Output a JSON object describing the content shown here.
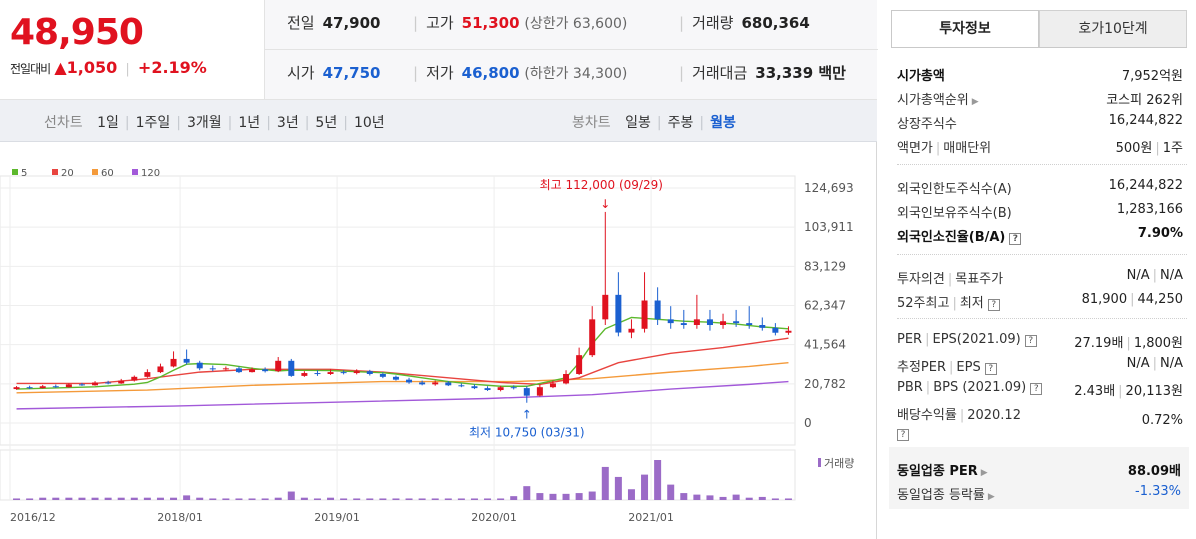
{
  "price": {
    "current": "48,950",
    "change_label": "전일대비",
    "change_amount": "1,050",
    "change_pct": "+2.19%"
  },
  "quote": {
    "prev_close": {
      "label": "전일",
      "value": "47,900"
    },
    "high": {
      "label": "고가",
      "value": "51,300",
      "limit_label": "상한가",
      "limit_value": "63,600"
    },
    "volume": {
      "label": "거래량",
      "value": "680,364"
    },
    "open": {
      "label": "시가",
      "value": "47,750"
    },
    "low": {
      "label": "저가",
      "value": "46,800",
      "limit_label": "하한가",
      "limit_value": "34,300"
    },
    "amount": {
      "label": "거래대금",
      "value": "33,339 백만"
    }
  },
  "period_bar": {
    "line_title": "선차트",
    "line_options": [
      "1일",
      "1주일",
      "3개월",
      "1년",
      "3년",
      "5년",
      "10년"
    ],
    "candle_title": "봉차트",
    "candle_options": [
      "일봉",
      "주봉",
      "월봉"
    ],
    "candle_selected": 2
  },
  "colors": {
    "ma5": "#5cb82c",
    "ma20": "#e8443f",
    "ma60": "#f49a3a",
    "ma120": "#a259d9",
    "up": "#e0121f",
    "down": "#1b60d0",
    "volume": "#9b6bc7"
  },
  "chart_data": {
    "type": "candlestick",
    "legend": [
      {
        "name": "5",
        "color": "#5cb82c"
      },
      {
        "name": "20",
        "color": "#e8443f"
      },
      {
        "name": "60",
        "color": "#f49a3a"
      },
      {
        "name": "120",
        "color": "#a259d9"
      }
    ],
    "y_ticks": [
      "124,693",
      "103,911",
      "83,129",
      "62,347",
      "41,564",
      "20,782",
      "0"
    ],
    "ylim": [
      0,
      124693
    ],
    "x_ticks": [
      "2016/12",
      "2018/01",
      "2019/01",
      "2020/01",
      "2021/01"
    ],
    "x_tick_months": [
      0,
      13,
      25,
      37,
      49
    ],
    "months": 60,
    "high_annotation": {
      "text": "최고 112,000 (09/29)",
      "month": 45,
      "value": 112000
    },
    "low_annotation": {
      "text": "최저 10,750 (03/31)",
      "month": 39,
      "value": 10750
    },
    "volume_label": "거래량",
    "candles": [
      [
        0,
        18000,
        19000,
        19600,
        17600
      ],
      [
        1,
        19000,
        18500,
        19800,
        18000
      ],
      [
        2,
        18500,
        19500,
        20200,
        18300
      ],
      [
        3,
        19500,
        19000,
        20400,
        18600
      ],
      [
        4,
        19000,
        20500,
        21000,
        18800
      ],
      [
        5,
        20500,
        20000,
        21300,
        19700
      ],
      [
        6,
        20000,
        21500,
        22200,
        19800
      ],
      [
        7,
        21500,
        21000,
        22400,
        20500
      ],
      [
        8,
        21000,
        22500,
        23400,
        20800
      ],
      [
        9,
        22500,
        24500,
        25200,
        22000
      ],
      [
        10,
        24500,
        27000,
        28500,
        24000
      ],
      [
        11,
        27000,
        30000,
        31500,
        26500
      ],
      [
        12,
        30000,
        34000,
        38000,
        29500
      ],
      [
        13,
        34000,
        32000,
        39000,
        31000
      ],
      [
        14,
        32000,
        29000,
        33000,
        28000
      ],
      [
        15,
        29000,
        28500,
        30500,
        27500
      ],
      [
        16,
        28500,
        29000,
        30000,
        27800
      ],
      [
        17,
        29000,
        27000,
        30000,
        26500
      ],
      [
        18,
        27000,
        28500,
        29500,
        26800
      ],
      [
        19,
        28500,
        27500,
        29500,
        26800
      ],
      [
        20,
        27500,
        33000,
        35000,
        27000
      ],
      [
        21,
        33000,
        25000,
        34000,
        24500
      ],
      [
        22,
        25000,
        26500,
        27500,
        24500
      ],
      [
        23,
        26500,
        26000,
        28000,
        25000
      ],
      [
        24,
        26000,
        27000,
        28500,
        25500
      ],
      [
        25,
        27000,
        26500,
        28000,
        25800
      ],
      [
        26,
        26500,
        27500,
        28500,
        25800
      ],
      [
        27,
        27500,
        26000,
        28200,
        25200
      ],
      [
        28,
        26000,
        24500,
        26800,
        23800
      ],
      [
        29,
        24500,
        23000,
        25200,
        22500
      ],
      [
        30,
        23000,
        21500,
        24000,
        20800
      ],
      [
        31,
        21500,
        20500,
        22500,
        20000
      ],
      [
        32,
        20500,
        21500,
        22500,
        19800
      ],
      [
        33,
        21500,
        20000,
        22200,
        19600
      ],
      [
        34,
        20000,
        19500,
        21000,
        19000
      ],
      [
        35,
        19500,
        18500,
        20500,
        18000
      ],
      [
        36,
        18500,
        17500,
        19500,
        17000
      ],
      [
        37,
        17500,
        19000,
        19800,
        16800
      ],
      [
        38,
        19000,
        18500,
        20000,
        17800
      ],
      [
        39,
        18500,
        14500,
        19500,
        10750
      ],
      [
        40,
        14500,
        19000,
        20500,
        14000
      ],
      [
        41,
        19000,
        21000,
        22500,
        18500
      ],
      [
        42,
        21000,
        26000,
        28000,
        20500
      ],
      [
        43,
        26000,
        36000,
        40000,
        25500
      ],
      [
        44,
        36000,
        55000,
        62000,
        35000
      ],
      [
        45,
        55000,
        68000,
        112000,
        52000
      ],
      [
        46,
        68000,
        48000,
        80000,
        46000
      ],
      [
        47,
        48000,
        50000,
        55000,
        45000
      ],
      [
        48,
        50000,
        65000,
        80000,
        48000
      ],
      [
        49,
        65000,
        55000,
        72000,
        52000
      ],
      [
        50,
        55000,
        53000,
        62000,
        50000
      ],
      [
        51,
        53000,
        52000,
        60000,
        50000
      ],
      [
        52,
        52000,
        55000,
        68000,
        50000
      ],
      [
        53,
        55000,
        52000,
        60000,
        49000
      ],
      [
        54,
        52000,
        54000,
        58000,
        50000
      ],
      [
        55,
        54000,
        53000,
        60000,
        51000
      ],
      [
        56,
        53000,
        52000,
        62000,
        50000
      ],
      [
        57,
        52000,
        50500,
        56000,
        49000
      ],
      [
        58,
        50500,
        47900,
        53000,
        46500
      ],
      [
        59,
        47900,
        48950,
        51300,
        46800
      ]
    ],
    "ma": {
      "ma5": [
        18000,
        18600,
        19200,
        20600,
        21500,
        24500,
        28000,
        31200,
        31500,
        31000,
        29000,
        27600,
        28000,
        27800,
        27200,
        26700,
        26000,
        24000,
        22000,
        20500,
        19500,
        19500,
        24000,
        32000,
        42000,
        50000,
        56000,
        55000,
        54000,
        53500,
        52500,
        51000,
        50000
      ],
      "ma5_x": [
        0,
        3,
        6,
        9,
        10,
        11,
        12,
        13,
        14,
        16,
        18,
        20,
        21,
        24,
        26,
        28,
        29,
        31,
        33,
        35,
        37,
        39,
        42,
        43,
        44,
        45,
        47,
        49,
        51,
        53,
        55,
        57,
        59
      ],
      "ma20": [
        [
          0,
          21000
        ],
        [
          6,
          21000
        ],
        [
          10,
          23500
        ],
        [
          14,
          27000
        ],
        [
          18,
          28500
        ],
        [
          24,
          28500
        ],
        [
          28,
          27000
        ],
        [
          33,
          24000
        ],
        [
          37,
          21500
        ],
        [
          40,
          20500
        ],
        [
          43,
          24000
        ],
        [
          46,
          32000
        ],
        [
          50,
          37000
        ],
        [
          54,
          40000
        ],
        [
          57,
          43000
        ],
        [
          59,
          45000
        ]
      ],
      "ma60": [
        [
          0,
          16000
        ],
        [
          10,
          17500
        ],
        [
          18,
          20000
        ],
        [
          28,
          22000
        ],
        [
          38,
          22000
        ],
        [
          44,
          23500
        ],
        [
          50,
          27000
        ],
        [
          56,
          30000
        ],
        [
          59,
          32000
        ]
      ],
      "ma120": [
        [
          0,
          7500
        ],
        [
          12,
          9000
        ],
        [
          24,
          11000
        ],
        [
          36,
          13000
        ],
        [
          44,
          15000
        ],
        [
          50,
          18000
        ],
        [
          56,
          20500
        ],
        [
          59,
          22000
        ]
      ]
    },
    "volume": [
      2,
      2,
      3,
      3,
      3,
      3,
      3,
      3,
      3,
      3,
      3,
      3,
      3,
      6,
      3,
      2,
      2,
      2,
      2,
      2,
      3,
      11,
      3,
      2,
      3,
      2,
      2,
      2,
      2,
      2,
      2,
      2,
      2,
      2,
      2,
      2,
      2,
      2,
      5,
      18,
      9,
      8,
      8,
      9,
      11,
      43,
      30,
      14,
      33,
      52,
      20,
      9,
      7,
      6,
      4,
      7,
      3,
      4,
      2,
      2
    ]
  },
  "invest_tabs": [
    "투자정보",
    "호가10단계"
  ],
  "invest": {
    "market_cap": {
      "label": "시가총액",
      "value": "7,952억원"
    },
    "market_cap_rank": {
      "label": "시가총액순위",
      "value": "코스피 262위"
    },
    "listed_shares": {
      "label": "상장주식수",
      "value": "16,244,822"
    },
    "par_value": {
      "label": "액면가",
      "label2": "매매단위",
      "value": "500원",
      "value2": "1주"
    },
    "foreign_limit": {
      "label": "외국인한도주식수(A)",
      "value": "16,244,822"
    },
    "foreign_held": {
      "label": "외국인보유주식수(B)",
      "value": "1,283,166"
    },
    "foreign_rate": {
      "label": "외국인소진율(B/A)",
      "value": "7.90%"
    },
    "opinion": {
      "label": "투자의견",
      "label2": "목표주가",
      "value": "N/A",
      "value2": "N/A"
    },
    "week52": {
      "label": "52주최고",
      "label2": "최저",
      "value": "81,900",
      "value2": "44,250"
    },
    "per_eps": {
      "label": "PER",
      "label2": "EPS(2021.09)",
      "value": "27.19배",
      "value2": "1,800원"
    },
    "est_per": {
      "label": "추정PER",
      "label2": "EPS",
      "value": "N/A",
      "value2": "N/A"
    },
    "pbr_bps": {
      "label": "PBR",
      "label2": "BPS (2021.09)",
      "value": "2.43배",
      "value2": "20,113원"
    },
    "dividend": {
      "label": "배당수익률",
      "label2": "2020.12",
      "value": "0.72%"
    },
    "sector_per": {
      "label": "동일업종 PER",
      "value": "88.09배"
    },
    "sector_change": {
      "label": "동일업종 등락률",
      "value": "-1.33%"
    }
  }
}
